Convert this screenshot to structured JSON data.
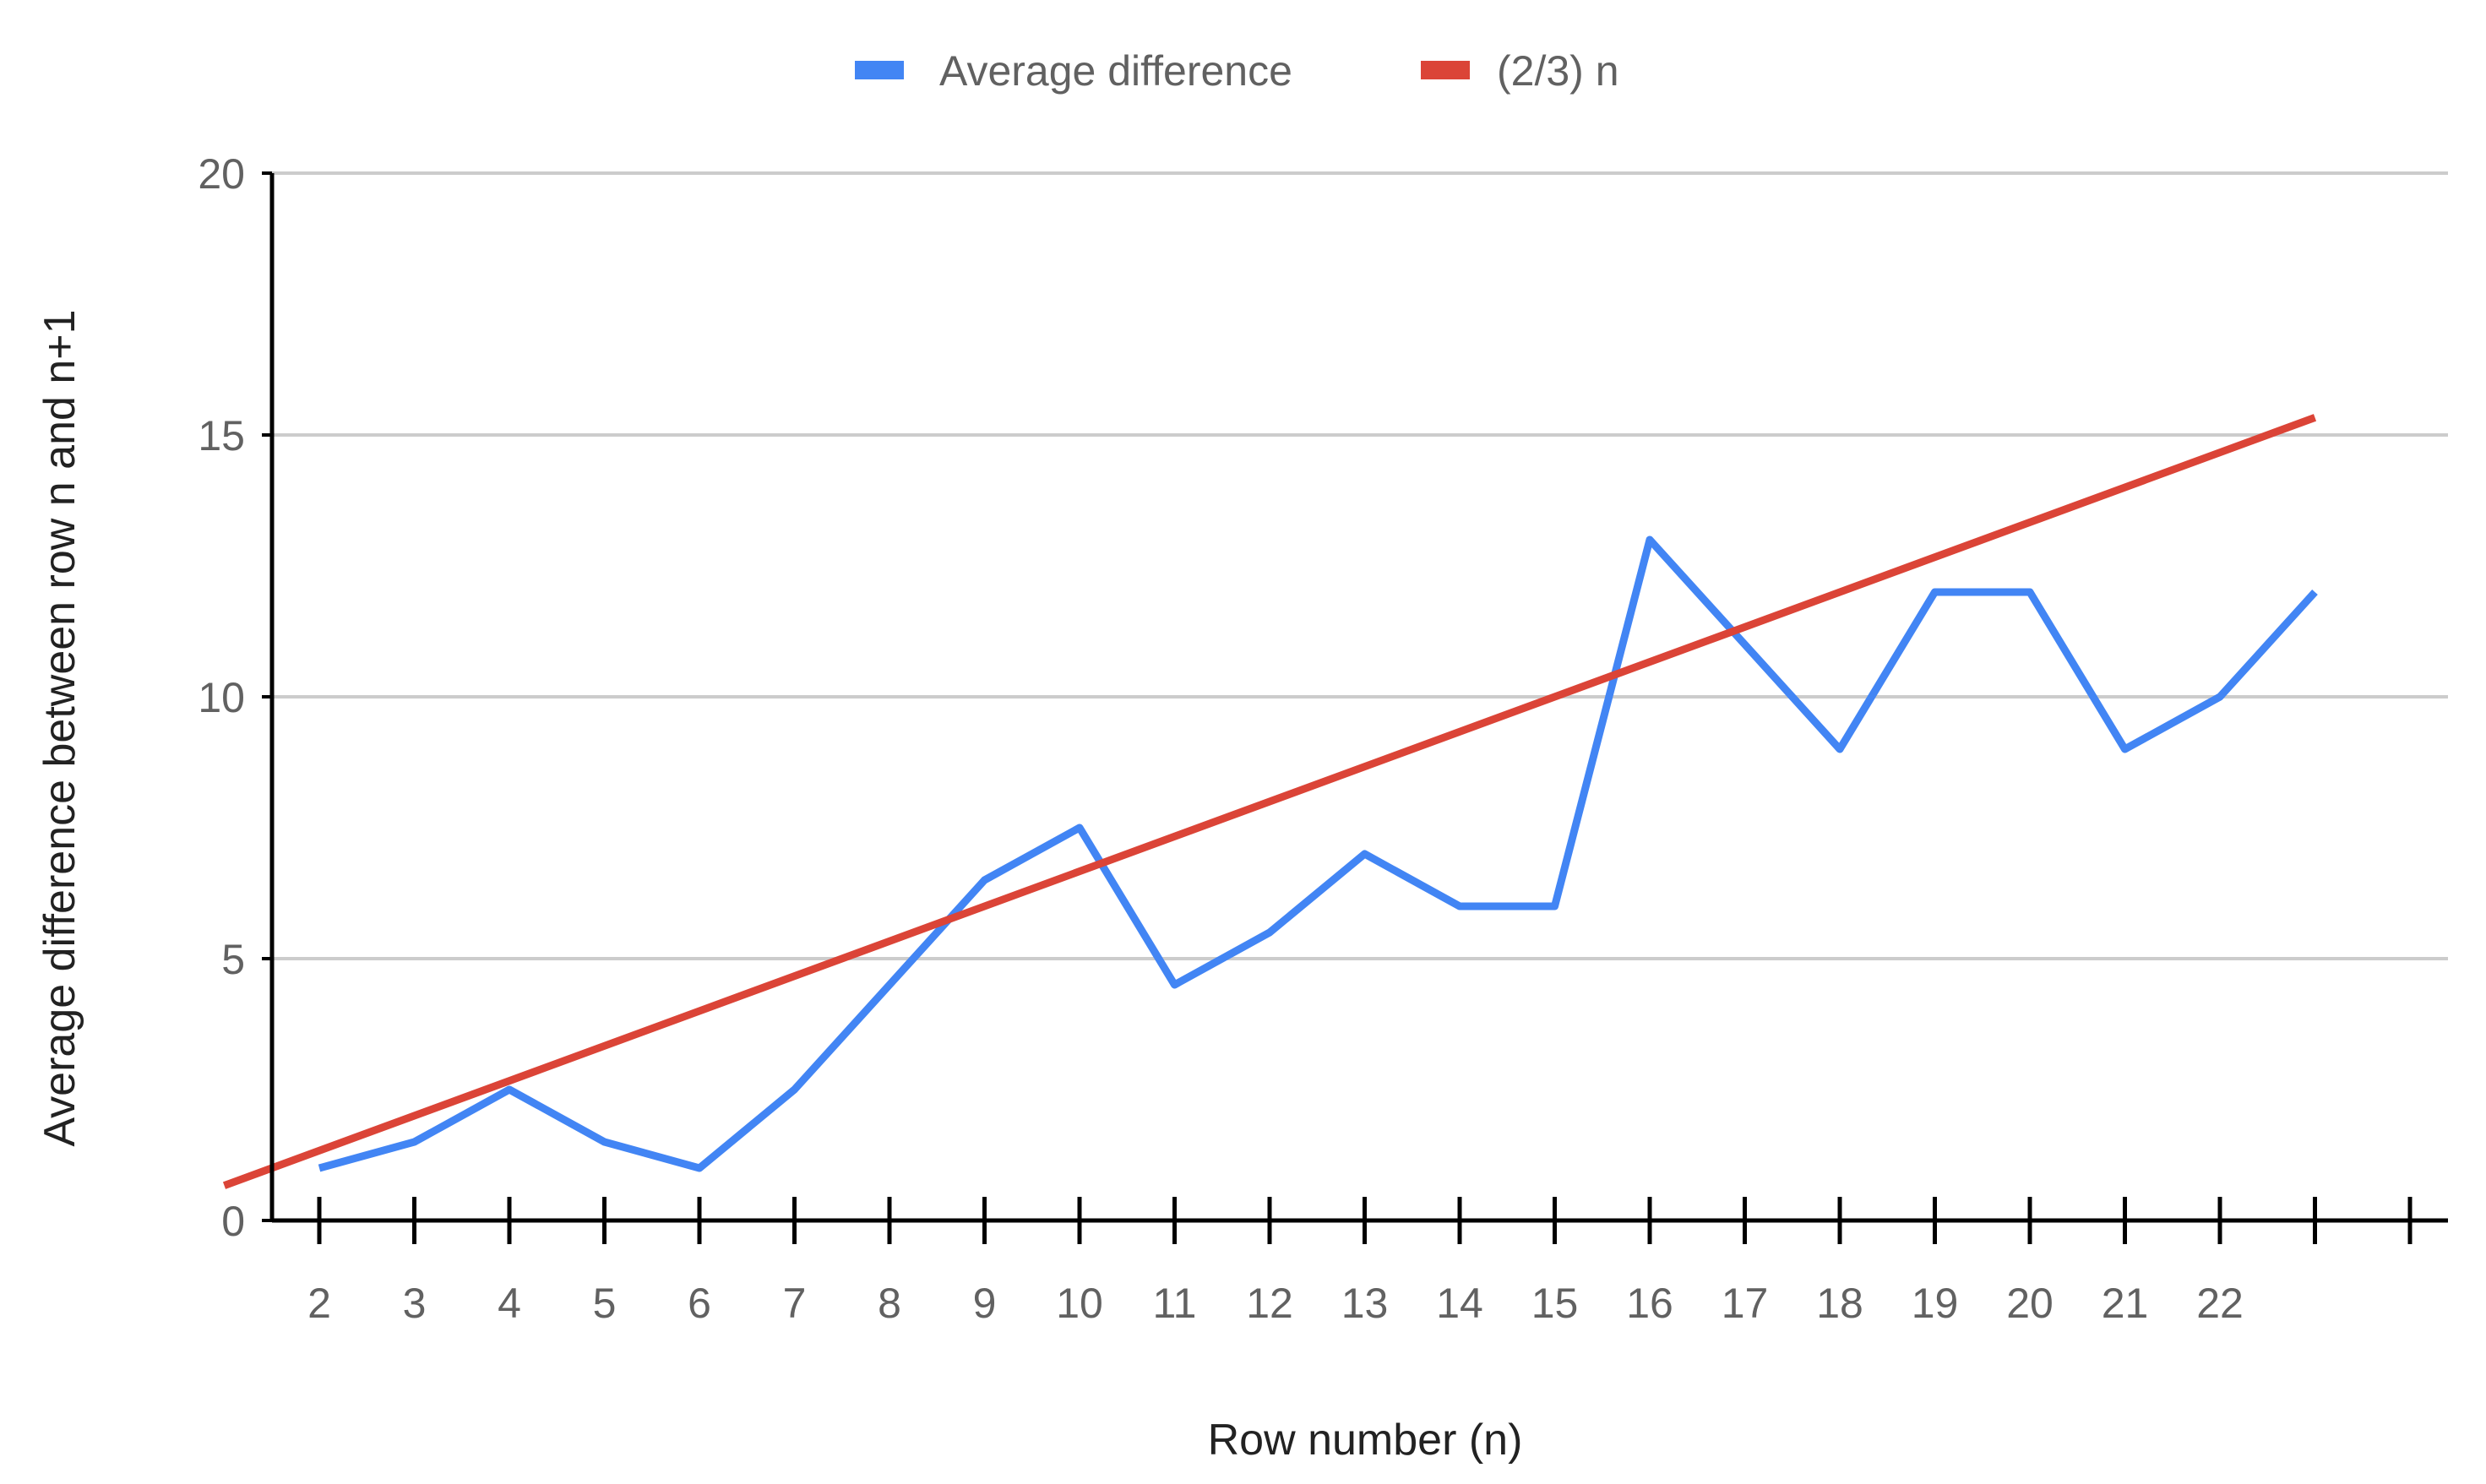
{
  "chart_data": {
    "type": "line",
    "title": "",
    "xlabel": "Row number (n)",
    "ylabel": "Average difference between row n and n+1",
    "x_tick_labels": [
      "2",
      "3",
      "4",
      "5",
      "6",
      "7",
      "8",
      "9",
      "10",
      "11",
      "12",
      "13",
      "14",
      "15",
      "16",
      "17",
      "18",
      "19",
      "20",
      "21",
      "22"
    ],
    "y_tick_labels": [
      "0",
      "5",
      "10",
      "15",
      "20"
    ],
    "ylim": [
      0,
      20
    ],
    "grid": true,
    "legend_position": "top",
    "series": [
      {
        "name": "Average difference",
        "color": "#4285F4",
        "x": [
          2,
          3,
          4,
          5,
          6,
          7,
          8,
          9,
          10,
          11,
          12,
          13,
          14,
          15,
          16,
          17,
          18,
          19,
          20,
          21,
          22,
          23
        ],
        "values": [
          1,
          1.5,
          2.5,
          1.5,
          1,
          2.5,
          4.5,
          6.5,
          7.5,
          4.5,
          5.5,
          7,
          6,
          6,
          13,
          11,
          9,
          12,
          12,
          9,
          10,
          12
        ]
      },
      {
        "name": "(2/3) n",
        "color": "#DB4437",
        "x": [
          1,
          23
        ],
        "values": [
          0.667,
          15.333
        ]
      }
    ]
  }
}
